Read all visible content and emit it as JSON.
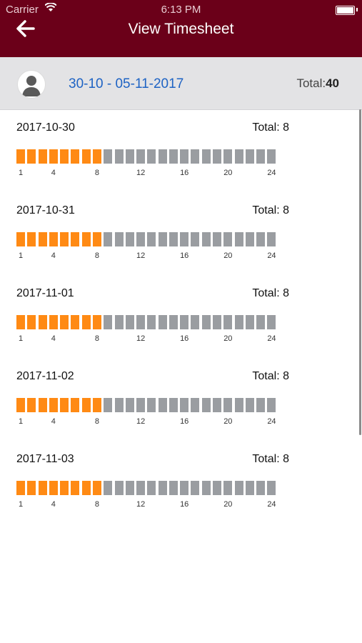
{
  "status_bar": {
    "carrier": "Carrier",
    "time": "6:13 PM"
  },
  "nav": {
    "title": "View Timesheet",
    "back_icon": "arrow-left-icon"
  },
  "summary": {
    "date_range": "30-10 - 05-11-2017",
    "total_label": "Total:",
    "total_value": "40"
  },
  "hour_ticks": [
    "1",
    "4",
    "8",
    "12",
    "16",
    "20",
    "24"
  ],
  "days": [
    {
      "date": "2017-10-30",
      "total": "Total: 8",
      "hours_worked": 8
    },
    {
      "date": "2017-10-31",
      "total": "Total: 8",
      "hours_worked": 8
    },
    {
      "date": "2017-11-01",
      "total": "Total: 8",
      "hours_worked": 8
    },
    {
      "date": "2017-11-02",
      "total": "Total: 8",
      "hours_worked": 8
    },
    {
      "date": "2017-11-03",
      "total": "Total: 8",
      "hours_worked": 8
    }
  ],
  "colors": {
    "nav_bg": "#6b0019",
    "worked": "#ff8a14",
    "not_worked": "#9a9da1",
    "link": "#1e63c4"
  }
}
